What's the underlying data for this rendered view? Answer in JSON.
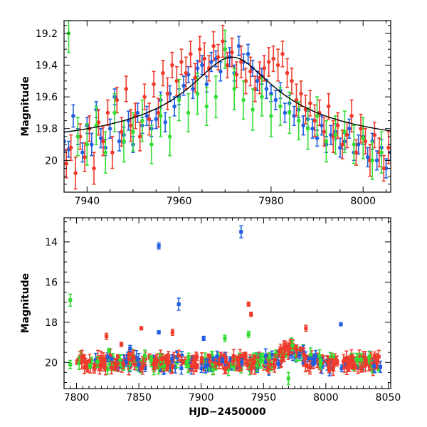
{
  "colors": {
    "blue": "#1f5fe0",
    "red": "#ef3b2c",
    "green": "#33dd33",
    "model": "#000000"
  },
  "chart_data": [
    {
      "type": "scatter",
      "panel": "top",
      "title": "",
      "xlabel": "",
      "ylabel": "Magnitude",
      "xlim": [
        7935,
        8006
      ],
      "ylim": [
        20.2,
        19.12
      ],
      "y_inverted": true,
      "xticks": [
        7940,
        7960,
        7980,
        8000
      ],
      "yticks": [
        19.2,
        19.4,
        19.6,
        19.8,
        20
      ],
      "ytick_labels": [
        "19.2",
        "19.4",
        "19.6",
        "19.8",
        "20"
      ],
      "model_curve": {
        "style": "solid black line",
        "peak_x": 7971.5,
        "peak_mag": 19.35,
        "baseline_mag": 19.97,
        "width_days": 12
      },
      "series": [
        {
          "color": "blue",
          "x": [
            7935,
            7936,
            7937,
            7938,
            7939,
            7940,
            7941,
            7942,
            7943,
            7944,
            7945,
            7946,
            7947,
            7948,
            7949,
            7950,
            7951,
            7952,
            7953,
            7954,
            7955,
            7956,
            7957,
            7958,
            7959,
            7960,
            7961,
            7962,
            7963,
            7964,
            7965,
            7966,
            7967,
            7968,
            7969,
            7970,
            7971,
            7972,
            7973,
            7974,
            7975,
            7976,
            7977,
            7978,
            7979,
            7980,
            7981,
            7982,
            7983,
            7984,
            7985,
            7986,
            7987,
            7988,
            7989,
            7990,
            7991,
            7992,
            7993,
            7994,
            7995,
            7996,
            7997,
            7998,
            7999,
            8000,
            8001,
            8002,
            8003,
            8004,
            8005,
            8006
          ],
          "y": [
            19.88,
            19.93,
            19.72,
            19.85,
            19.95,
            19.78,
            19.9,
            19.68,
            19.86,
            19.92,
            19.8,
            19.6,
            19.88,
            19.84,
            19.75,
            19.9,
            19.7,
            19.78,
            19.72,
            19.8,
            19.74,
            19.62,
            19.76,
            19.58,
            19.66,
            19.6,
            19.53,
            19.46,
            19.55,
            19.42,
            19.4,
            19.52,
            19.38,
            19.36,
            19.44,
            19.3,
            19.35,
            19.45,
            19.28,
            19.38,
            19.33,
            19.42,
            19.5,
            19.47,
            19.55,
            19.58,
            19.62,
            19.56,
            19.7,
            19.64,
            19.72,
            19.68,
            19.78,
            19.74,
            19.8,
            19.86,
            19.78,
            19.9,
            19.84,
            19.82,
            19.92,
            19.88,
            19.8,
            19.95,
            19.9,
            19.85,
            19.98,
            19.88,
            20.0,
            19.92,
            20.05,
            19.95
          ],
          "err": [
            0.06,
            0.05,
            0.07,
            0.05,
            0.06,
            0.05,
            0.07,
            0.05,
            0.06,
            0.05,
            0.06,
            0.05,
            0.06,
            0.05,
            0.06,
            0.05,
            0.06,
            0.05,
            0.06,
            0.05,
            0.06,
            0.05,
            0.06,
            0.05,
            0.06,
            0.05,
            0.06,
            0.05,
            0.06,
            0.05,
            0.06,
            0.05,
            0.06,
            0.05,
            0.06,
            0.05,
            0.06,
            0.05,
            0.06,
            0.05,
            0.06,
            0.05,
            0.06,
            0.05,
            0.06,
            0.05,
            0.06,
            0.05,
            0.06,
            0.05,
            0.06,
            0.05,
            0.06,
            0.05,
            0.06,
            0.05,
            0.06,
            0.05,
            0.06,
            0.05,
            0.06,
            0.05,
            0.06,
            0.05,
            0.06,
            0.05,
            0.06,
            0.05,
            0.06,
            0.05,
            0.06,
            0.05
          ]
        },
        {
          "color": "red",
          "x": [
            7935.5,
            7936.5,
            7937.5,
            7938.5,
            7939.5,
            7940.5,
            7941.5,
            7942.5,
            7943.5,
            7944.5,
            7945.5,
            7946.5,
            7947.5,
            7948.5,
            7949.5,
            7950.5,
            7951.5,
            7952.5,
            7953.5,
            7954.5,
            7955.5,
            7956.5,
            7957.5,
            7958.5,
            7959.5,
            7960.5,
            7961.5,
            7962.5,
            7963.5,
            7964.5,
            7965.5,
            7966.5,
            7967.5,
            7968.5,
            7969.5,
            7970.5,
            7971.5,
            7972.5,
            7973.5,
            7974.5,
            7975.5,
            7976.5,
            7977.5,
            7978.5,
            7979.5,
            7980.5,
            7981.5,
            7982.5,
            7983.5,
            7984.5,
            7985.5,
            7986.5,
            7987.5,
            7988.5,
            7989.5,
            7990.5,
            7991.5,
            7992.5,
            7993.5,
            7994.5,
            7995.5,
            7996.5,
            7997.5,
            7998.5,
            7999.5,
            8000.5,
            8001.5,
            8002.5,
            8003.5,
            8004.5,
            8005.5
          ],
          "y": [
            20.02,
            19.92,
            20.08,
            19.85,
            19.98,
            19.8,
            20.05,
            19.76,
            19.88,
            19.7,
            19.95,
            19.62,
            19.82,
            19.55,
            19.78,
            19.72,
            19.85,
            19.6,
            19.74,
            19.52,
            19.7,
            19.45,
            19.58,
            19.4,
            19.5,
            19.38,
            19.45,
            19.33,
            19.48,
            19.3,
            19.36,
            19.42,
            19.28,
            19.35,
            19.25,
            19.4,
            19.32,
            19.46,
            19.38,
            19.5,
            19.44,
            19.55,
            19.48,
            19.42,
            19.38,
            19.36,
            19.4,
            19.33,
            19.45,
            19.5,
            19.62,
            19.58,
            19.68,
            19.64,
            19.75,
            19.7,
            19.82,
            19.66,
            19.85,
            19.78,
            19.9,
            19.84,
            19.72,
            19.95,
            19.8,
            19.88,
            20.0,
            19.84,
            19.95,
            20.05,
            19.92
          ],
          "err": [
            0.09,
            0.08,
            0.1,
            0.08,
            0.09,
            0.08,
            0.1,
            0.08,
            0.09,
            0.08,
            0.1,
            0.08,
            0.09,
            0.08,
            0.1,
            0.08,
            0.09,
            0.08,
            0.1,
            0.08,
            0.09,
            0.08,
            0.1,
            0.08,
            0.09,
            0.08,
            0.1,
            0.08,
            0.09,
            0.08,
            0.1,
            0.08,
            0.09,
            0.08,
            0.1,
            0.08,
            0.09,
            0.08,
            0.1,
            0.08,
            0.09,
            0.08,
            0.1,
            0.08,
            0.09,
            0.08,
            0.1,
            0.08,
            0.09,
            0.08,
            0.1,
            0.08,
            0.09,
            0.08,
            0.1,
            0.08,
            0.09,
            0.08,
            0.1,
            0.08,
            0.09,
            0.08,
            0.1,
            0.08,
            0.09,
            0.08,
            0.1,
            0.08,
            0.09,
            0.08,
            0.1
          ]
        },
        {
          "color": "green",
          "x": [
            7936,
            7938,
            7940,
            7942,
            7944,
            7946,
            7948,
            7950,
            7952,
            7954,
            7956,
            7958,
            7960,
            7962,
            7964,
            7966,
            7968,
            7970,
            7972,
            7974,
            7976,
            7978,
            7980,
            7982,
            7984,
            7986,
            7988,
            7990,
            7992,
            7994,
            7996,
            7998,
            8000,
            8002,
            8004
          ],
          "y": [
            19.2,
            19.85,
            19.9,
            19.78,
            19.95,
            19.7,
            19.88,
            19.82,
            19.75,
            19.9,
            19.72,
            19.85,
            19.62,
            19.7,
            19.58,
            19.66,
            19.6,
            19.3,
            19.55,
            19.62,
            19.68,
            19.6,
            19.72,
            19.66,
            19.7,
            19.75,
            19.8,
            19.72,
            19.88,
            19.84,
            19.82,
            19.9,
            19.86,
            20.0,
            19.95
          ],
          "err": [
            0.12,
            0.12,
            0.13,
            0.12,
            0.13,
            0.12,
            0.13,
            0.12,
            0.13,
            0.12,
            0.13,
            0.12,
            0.13,
            0.12,
            0.13,
            0.12,
            0.13,
            0.12,
            0.13,
            0.12,
            0.13,
            0.12,
            0.13,
            0.12,
            0.13,
            0.12,
            0.13,
            0.12,
            0.13,
            0.12,
            0.13,
            0.12,
            0.13,
            0.12,
            0.13
          ]
        }
      ]
    },
    {
      "type": "scatter",
      "panel": "bottom",
      "title": "",
      "xlabel": "HJD−2450000",
      "ylabel": "Magnitude",
      "xlim": [
        7790,
        8052
      ],
      "ylim": [
        21.3,
        12.8
      ],
      "y_inverted": true,
      "xticks": [
        7800,
        7850,
        7900,
        7950,
        8000,
        8050
      ],
      "yticks": [
        14,
        16,
        18,
        20
      ],
      "ytick_labels": [
        "14",
        "16",
        "18",
        "20"
      ],
      "baseline": {
        "mag": 20.0,
        "x_start": 7800,
        "x_end": 8045
      },
      "outliers": [
        {
          "color": "blue",
          "x": 7866,
          "y": 14.2,
          "err": 0.15
        },
        {
          "color": "blue",
          "x": 7932,
          "y": 13.5,
          "err": 0.3
        },
        {
          "color": "blue",
          "x": 7882,
          "y": 17.1,
          "err": 0.3
        },
        {
          "color": "blue",
          "x": 7866,
          "y": 18.5,
          "err": 0.08
        },
        {
          "color": "blue",
          "x": 7902,
          "y": 18.8,
          "err": 0.1
        },
        {
          "color": "blue",
          "x": 8012,
          "y": 18.1,
          "err": 0.08
        },
        {
          "color": "blue",
          "x": 7843,
          "y": 19.3,
          "err": 0.15
        },
        {
          "color": "green",
          "x": 7795,
          "y": 16.9,
          "err": 0.3
        },
        {
          "color": "green",
          "x": 7795,
          "y": 20.1,
          "err": 0.2
        },
        {
          "color": "green",
          "x": 7938,
          "y": 18.6,
          "err": 0.15
        },
        {
          "color": "green",
          "x": 7919,
          "y": 18.8,
          "err": 0.15
        },
        {
          "color": "green",
          "x": 7826,
          "y": 19.4,
          "err": 0.1
        },
        {
          "color": "green",
          "x": 7970,
          "y": 20.8,
          "err": 0.3
        },
        {
          "color": "red",
          "x": 7852,
          "y": 18.3,
          "err": 0.08
        },
        {
          "color": "red",
          "x": 7938,
          "y": 17.1,
          "err": 0.1
        },
        {
          "color": "red",
          "x": 7940,
          "y": 17.6,
          "err": 0.1
        },
        {
          "color": "red",
          "x": 7824,
          "y": 18.7,
          "err": 0.15
        },
        {
          "color": "red",
          "x": 7877,
          "y": 18.5,
          "err": 0.15
        },
        {
          "color": "red",
          "x": 7984,
          "y": 18.3,
          "err": 0.15
        },
        {
          "color": "red",
          "x": 7836,
          "y": 19.1,
          "err": 0.1
        }
      ]
    }
  ]
}
